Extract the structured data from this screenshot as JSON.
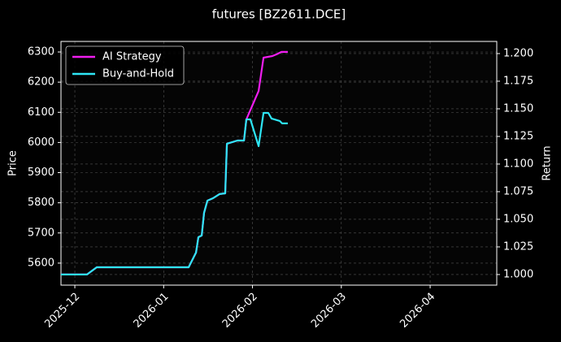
{
  "chart_data": {
    "type": "line",
    "title": "futures [BZ2611.DCE]",
    "ylabel": "Price",
    "y2label": "Return",
    "xlim": [
      -0.156,
      4.75
    ],
    "xticks": [
      {
        "value": 0,
        "label": "2025-12"
      },
      {
        "value": 1,
        "label": "2026-01"
      },
      {
        "value": 2,
        "label": "2026-02"
      },
      {
        "value": 3,
        "label": "2026-03"
      },
      {
        "value": 4,
        "label": "2026-04"
      }
    ],
    "ylim": [
      5527,
      6335
    ],
    "yticks": [
      5600,
      5700,
      5800,
      5900,
      6000,
      6100,
      6200,
      6300
    ],
    "y2lim": [
      0.9904,
      1.211
    ],
    "y2ticks": [
      {
        "value": 1.0,
        "label": "1.000"
      },
      1.025,
      {
        "value": 1.05,
        "label": "1.050"
      },
      1.075,
      {
        "value": 1.1,
        "label": "1.100"
      },
      1.125,
      {
        "value": 1.15,
        "label": "1.150"
      },
      1.175,
      {
        "value": 1.2,
        "label": "1.200"
      }
    ],
    "grid": true,
    "legend": "upper left",
    "series": [
      {
        "name": "AI Strategy",
        "color": "#f01ef0",
        "axis": "y2",
        "x": [
          -0.156,
          0.137,
          0.247,
          1.281,
          1.364,
          1.391,
          1.428,
          1.455,
          1.492,
          1.556,
          1.629,
          1.693,
          1.712,
          1.831,
          1.904,
          1.931,
          2.069,
          2.124,
          2.224,
          2.27,
          2.325,
          2.398
        ],
        "values": [
          1.0,
          1.0,
          1.0066,
          1.0066,
          1.0199,
          1.0338,
          1.0353,
          1.0559,
          1.0669,
          1.0691,
          1.0728,
          1.0735,
          1.1184,
          1.1213,
          1.1213,
          1.1404,
          1.1662,
          1.1963,
          1.1978,
          1.1993,
          1.2015,
          1.2015
        ]
      },
      {
        "name": "Buy-and-Hold",
        "color": "#2ee6f5",
        "axis": "y2",
        "x": [
          -0.156,
          0.137,
          0.247,
          1.281,
          1.364,
          1.391,
          1.428,
          1.455,
          1.492,
          1.556,
          1.629,
          1.693,
          1.712,
          1.831,
          1.904,
          1.931,
          1.977,
          2.069,
          2.124,
          2.178,
          2.215,
          2.307,
          2.334,
          2.398
        ],
        "values": [
          1.0,
          1.0,
          1.0066,
          1.0066,
          1.0199,
          1.0338,
          1.0353,
          1.0559,
          1.0669,
          1.0691,
          1.0728,
          1.0735,
          1.1184,
          1.1213,
          1.1213,
          1.1404,
          1.1404,
          1.1162,
          1.1463,
          1.1463,
          1.1412,
          1.139,
          1.1368,
          1.1368
        ]
      }
    ]
  }
}
